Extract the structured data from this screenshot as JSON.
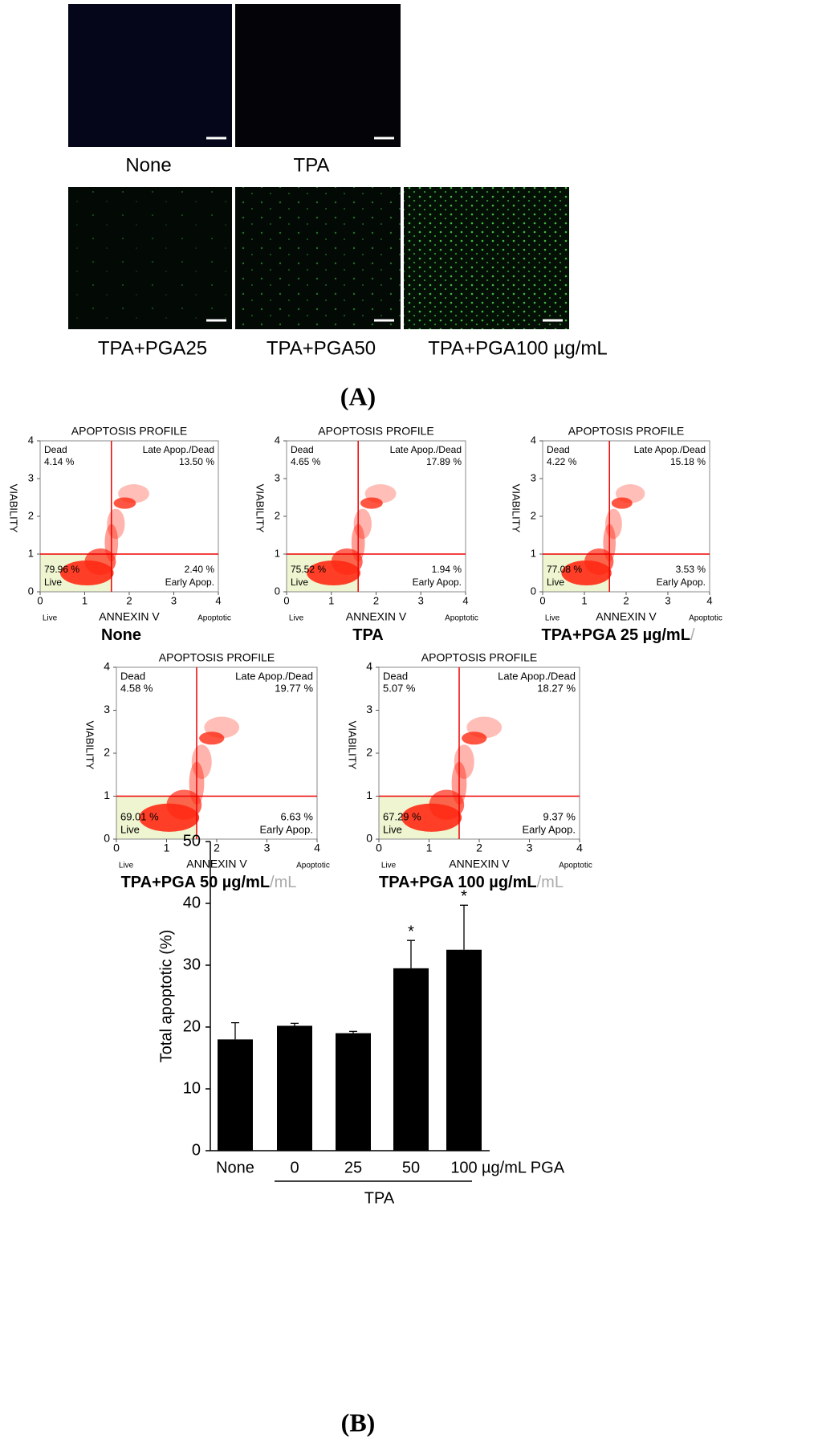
{
  "panel_a": {
    "label": "(A)",
    "images": [
      "None",
      "TPA",
      "TPA+PGA25",
      "TPA+PGA50",
      "TPA+PGA100 µg/mL"
    ]
  },
  "panel_b_label": "(B)",
  "chart_data": [
    {
      "type": "quadrant",
      "title": "APOPTOSIS PROFILE",
      "xlabel": "ANNEXIN V",
      "ylabel": "VIABILITY",
      "x_end_labels": [
        "Live",
        "Apoptotic"
      ],
      "xlim": [
        0,
        4
      ],
      "ylim": [
        0,
        4
      ],
      "xticks": [
        0,
        1,
        2,
        3,
        4
      ],
      "yticks": [
        0,
        1,
        2,
        3,
        4
      ],
      "gates": {
        "x": 1.6,
        "y": 1
      },
      "quadrant_labels": [
        "Dead",
        "Late Apop./Dead",
        "Live",
        "Early Apop."
      ],
      "values": [
        4.14,
        13.5,
        79.96,
        2.4
      ],
      "value_labels": [
        "4.14 %",
        "13.50 %",
        "79.96 %",
        "2.40 %"
      ],
      "caption": "None"
    },
    {
      "type": "quadrant",
      "title": "APOPTOSIS PROFILE",
      "xlabel": "ANNEXIN V",
      "ylabel": "VIABILITY",
      "x_end_labels": [
        "Live",
        "Apoptotic"
      ],
      "xlim": [
        0,
        4
      ],
      "ylim": [
        0,
        4
      ],
      "xticks": [
        0,
        1,
        2,
        3,
        4
      ],
      "yticks": [
        0,
        1,
        2,
        3,
        4
      ],
      "gates": {
        "x": 1.6,
        "y": 1
      },
      "quadrant_labels": [
        "Dead",
        "Late Apop./Dead",
        "Live",
        "Early Apop."
      ],
      "values": [
        4.65,
        17.89,
        75.52,
        1.94
      ],
      "value_labels": [
        "4.65 %",
        "17.89 %",
        "75.52 %",
        "1.94 %"
      ],
      "caption": "TPA"
    },
    {
      "type": "quadrant",
      "title": "APOPTOSIS PROFILE",
      "xlabel": "ANNEXIN V",
      "ylabel": "VIABILITY",
      "x_end_labels": [
        "Live",
        "Apoptotic"
      ],
      "xlim": [
        0,
        4
      ],
      "ylim": [
        0,
        4
      ],
      "xticks": [
        0,
        1,
        2,
        3,
        4
      ],
      "yticks": [
        0,
        1,
        2,
        3,
        4
      ],
      "gates": {
        "x": 1.6,
        "y": 1
      },
      "quadrant_labels": [
        "Dead",
        "Late Apop./Dead",
        "Live",
        "Early Apop."
      ],
      "values": [
        4.22,
        15.18,
        77.08,
        3.53
      ],
      "value_labels": [
        "4.22 %",
        "15.18 %",
        "77.08 %",
        "3.53 %"
      ],
      "caption": "TPA+PGA 25 µg/mL",
      "caption_extra": "/"
    },
    {
      "type": "quadrant",
      "title": "APOPTOSIS PROFILE",
      "xlabel": "ANNEXIN V",
      "ylabel": "VIABILITY",
      "x_end_labels": [
        "Live",
        "Apoptotic"
      ],
      "xlim": [
        0,
        4
      ],
      "ylim": [
        0,
        4
      ],
      "xticks": [
        0,
        1,
        2,
        3,
        4
      ],
      "yticks": [
        0,
        1,
        2,
        3,
        4
      ],
      "gates": {
        "x": 1.6,
        "y": 1
      },
      "quadrant_labels": [
        "Dead",
        "Late Apop./Dead",
        "Live",
        "Early Apop."
      ],
      "values": [
        4.58,
        19.77,
        69.01,
        6.63
      ],
      "value_labels": [
        "4.58 %",
        "19.77 %",
        "69.01 %",
        "6.63 %"
      ],
      "caption": "TPA+PGA 50 µg/mL",
      "caption_extra": "/mL"
    },
    {
      "type": "quadrant",
      "title": "APOPTOSIS PROFILE",
      "xlabel": "ANNEXIN V",
      "ylabel": "VIABILITY",
      "x_end_labels": [
        "Live",
        "Apoptotic"
      ],
      "xlim": [
        0,
        4
      ],
      "ylim": [
        0,
        4
      ],
      "xticks": [
        0,
        1,
        2,
        3,
        4
      ],
      "yticks": [
        0,
        1,
        2,
        3,
        4
      ],
      "gates": {
        "x": 1.6,
        "y": 1
      },
      "quadrant_labels": [
        "Dead",
        "Late Apop./Dead",
        "Live",
        "Early Apop."
      ],
      "values": [
        5.07,
        18.27,
        67.29,
        9.37
      ],
      "value_labels": [
        "5.07 %",
        "18.27 %",
        "67.29 %",
        "9.37 %"
      ],
      "caption": "TPA+PGA 100 µg/mL",
      "caption_extra": "/mL"
    },
    {
      "type": "bar",
      "ylabel": "Total apoptotic (%)",
      "categories": [
        "None",
        "0",
        "25",
        "50",
        "100"
      ],
      "values": [
        18,
        20.2,
        19,
        29.5,
        32.5
      ],
      "errors": [
        2.7,
        0.4,
        0.3,
        4.5,
        7.2
      ],
      "annotations": [
        null,
        null,
        null,
        "*",
        "*"
      ],
      "unit_label": "µg/mL PGA",
      "group_label": "TPA",
      "color": "#000000",
      "ylim": [
        0,
        50
      ],
      "yticks": [
        0,
        10,
        20,
        30,
        40,
        50
      ]
    }
  ]
}
